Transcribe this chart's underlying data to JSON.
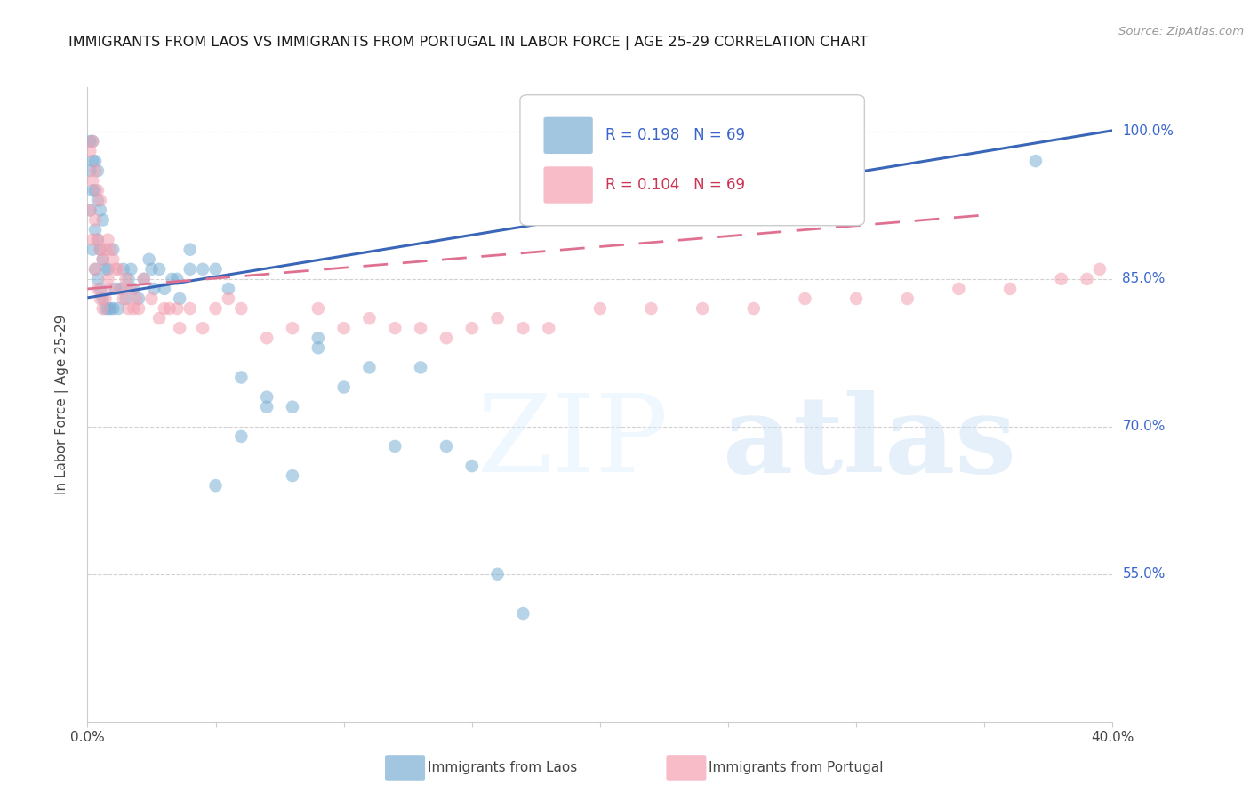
{
  "title": "IMMIGRANTS FROM LAOS VS IMMIGRANTS FROM PORTUGAL IN LABOR FORCE | AGE 25-29 CORRELATION CHART",
  "source": "Source: ZipAtlas.com",
  "ylabel": "In Labor Force | Age 25-29",
  "xlim": [
    0.0,
    0.4
  ],
  "ylim": [
    0.4,
    1.045
  ],
  "yticks_right": [
    0.55,
    0.7,
    0.85,
    1.0
  ],
  "ytick_labels_right": [
    "55.0%",
    "70.0%",
    "85.0%",
    "100.0%"
  ],
  "grid_color": "#cccccc",
  "background_color": "#ffffff",
  "laos_color": "#7bafd4",
  "portugal_color": "#f4a0b0",
  "laos_line_color": "#3a66b8",
  "portugal_line_color": "#e07090",
  "laos_R": 0.198,
  "laos_N": 69,
  "portugal_R": 0.104,
  "portugal_N": 69,
  "watermark_zip": "ZIP",
  "watermark_atlas": "atlas",
  "legend_laos": "Immigrants from Laos",
  "legend_portugal": "Immigrants from Portugal",
  "laos_x": [
    0.001,
    0.001,
    0.001,
    0.002,
    0.002,
    0.002,
    0.002,
    0.003,
    0.003,
    0.003,
    0.003,
    0.004,
    0.004,
    0.004,
    0.004,
    0.005,
    0.005,
    0.005,
    0.006,
    0.006,
    0.006,
    0.007,
    0.007,
    0.008,
    0.008,
    0.009,
    0.01,
    0.01,
    0.011,
    0.012,
    0.013,
    0.014,
    0.015,
    0.016,
    0.017,
    0.018,
    0.02,
    0.022,
    0.024,
    0.026,
    0.028,
    0.03,
    0.033,
    0.036,
    0.04,
    0.045,
    0.05,
    0.055,
    0.06,
    0.07,
    0.08,
    0.09,
    0.1,
    0.11,
    0.12,
    0.13,
    0.14,
    0.15,
    0.16,
    0.17,
    0.05,
    0.06,
    0.07,
    0.08,
    0.37,
    0.09,
    0.04,
    0.035,
    0.025
  ],
  "laos_y": [
    0.92,
    0.96,
    0.99,
    0.88,
    0.94,
    0.97,
    0.99,
    0.86,
    0.9,
    0.94,
    0.97,
    0.85,
    0.89,
    0.93,
    0.96,
    0.84,
    0.88,
    0.92,
    0.83,
    0.87,
    0.91,
    0.82,
    0.86,
    0.82,
    0.86,
    0.82,
    0.82,
    0.88,
    0.84,
    0.82,
    0.84,
    0.86,
    0.83,
    0.85,
    0.86,
    0.84,
    0.83,
    0.85,
    0.87,
    0.84,
    0.86,
    0.84,
    0.85,
    0.83,
    0.86,
    0.86,
    0.86,
    0.84,
    0.75,
    0.73,
    0.72,
    0.78,
    0.74,
    0.76,
    0.68,
    0.76,
    0.68,
    0.66,
    0.55,
    0.51,
    0.64,
    0.69,
    0.72,
    0.65,
    0.97,
    0.79,
    0.88,
    0.85,
    0.86
  ],
  "portugal_x": [
    0.001,
    0.001,
    0.002,
    0.002,
    0.002,
    0.003,
    0.003,
    0.003,
    0.004,
    0.004,
    0.004,
    0.005,
    0.005,
    0.005,
    0.006,
    0.006,
    0.007,
    0.007,
    0.008,
    0.008,
    0.009,
    0.009,
    0.01,
    0.011,
    0.012,
    0.013,
    0.014,
    0.016,
    0.018,
    0.02,
    0.022,
    0.025,
    0.028,
    0.032,
    0.036,
    0.04,
    0.045,
    0.05,
    0.06,
    0.07,
    0.08,
    0.09,
    0.1,
    0.11,
    0.12,
    0.13,
    0.14,
    0.15,
    0.16,
    0.17,
    0.18,
    0.2,
    0.22,
    0.24,
    0.26,
    0.28,
    0.3,
    0.32,
    0.34,
    0.36,
    0.38,
    0.39,
    0.395,
    0.015,
    0.017,
    0.019,
    0.03,
    0.035,
    0.055
  ],
  "portugal_y": [
    0.92,
    0.98,
    0.89,
    0.95,
    0.99,
    0.86,
    0.91,
    0.96,
    0.84,
    0.89,
    0.94,
    0.83,
    0.88,
    0.93,
    0.82,
    0.87,
    0.83,
    0.88,
    0.85,
    0.89,
    0.84,
    0.88,
    0.87,
    0.86,
    0.86,
    0.84,
    0.83,
    0.82,
    0.82,
    0.82,
    0.85,
    0.83,
    0.81,
    0.82,
    0.8,
    0.82,
    0.8,
    0.82,
    0.82,
    0.79,
    0.8,
    0.82,
    0.8,
    0.81,
    0.8,
    0.8,
    0.79,
    0.8,
    0.81,
    0.8,
    0.8,
    0.82,
    0.82,
    0.82,
    0.82,
    0.83,
    0.83,
    0.83,
    0.84,
    0.84,
    0.85,
    0.85,
    0.86,
    0.85,
    0.84,
    0.83,
    0.82,
    0.82,
    0.83
  ]
}
